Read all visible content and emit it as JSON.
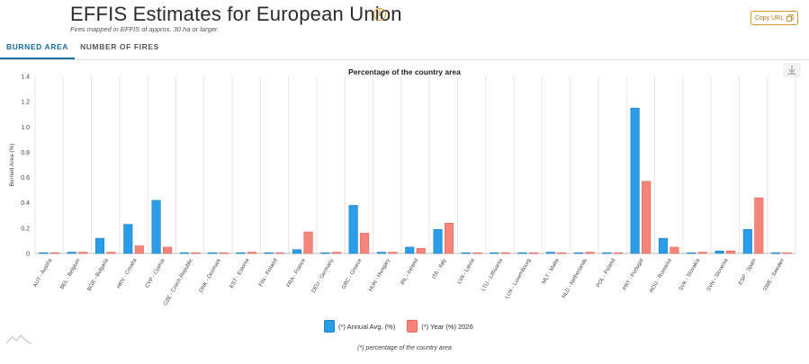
{
  "header": {
    "title": "EFFIS Estimates for European Union",
    "subtitle": "Fires mapped in EFFIS of approx. 30 ha or larger.",
    "copy_label": "Copy URL"
  },
  "tabs": [
    {
      "label": "BURNED AREA",
      "active": true
    },
    {
      "label": "NUMBER OF FIRES",
      "active": false
    }
  ],
  "icons": {
    "info": "info-icon",
    "copy": "copy-icon",
    "download": "download-icon",
    "logo": "mountain-logo-icon"
  },
  "colors": {
    "annual_avg": "#2b9de8",
    "year_2026": "#f5857a",
    "accent": "#d39a2a",
    "tab_active": "#1c6e9e"
  },
  "chart_data": {
    "type": "bar",
    "title": "Percentage of the country area",
    "ylabel": "Burned Area (%)",
    "xlabel": "",
    "ylim": [
      0,
      1.4
    ],
    "yticks": [
      "0",
      "0.2",
      "0.4",
      "0.6",
      "0.8",
      "1.0",
      "1.2",
      "1.4"
    ],
    "grid": "vertical",
    "legend_position": "bottom",
    "categories": [
      "AUT - Austria",
      "BEL - Belgium",
      "BGR - Bulgaria",
      "HRV - Croatia",
      "CYP - Cyprus",
      "CZE - Czech Republic",
      "DNK - Denmark",
      "EST - Estonia",
      "FIN - Finland",
      "FRA - France",
      "DEU - Germany",
      "GRC - Greece",
      "HUN - Hungary",
      "IRL - Ireland",
      "ITA - Italy",
      "LVA - Latvia",
      "LTU - Lithuania",
      "LUX - Luxembourg",
      "MLT - Malta",
      "NLD - Netherlands",
      "POL - Poland",
      "PRT - Portugal",
      "ROU - Romania",
      "SVK - Slovakia",
      "SVN - Slovenia",
      "ESP - Spain",
      "SWE - Sweden"
    ],
    "series": [
      {
        "name": "(*) Annual Avg. (%)",
        "values": [
          0.0,
          0.01,
          0.12,
          0.23,
          0.42,
          0.0,
          0.0,
          0.0,
          0.0,
          0.03,
          0.0,
          0.38,
          0.01,
          0.05,
          0.19,
          0.0,
          0.0,
          0.0,
          0.01,
          0.0,
          0.0,
          1.15,
          0.12,
          0.0,
          0.02,
          0.19,
          0.0
        ]
      },
      {
        "name": "(*) Year (%) 2026",
        "values": [
          0.0,
          0.01,
          0.01,
          0.06,
          0.05,
          0.0,
          0.0,
          0.01,
          0.0,
          0.17,
          0.01,
          0.16,
          0.01,
          0.04,
          0.24,
          0.0,
          0.0,
          0.0,
          0.0,
          0.01,
          0.0,
          0.57,
          0.05,
          0.01,
          0.02,
          0.44,
          0.0
        ]
      }
    ]
  },
  "footnote": "(*) percentage of the country area"
}
